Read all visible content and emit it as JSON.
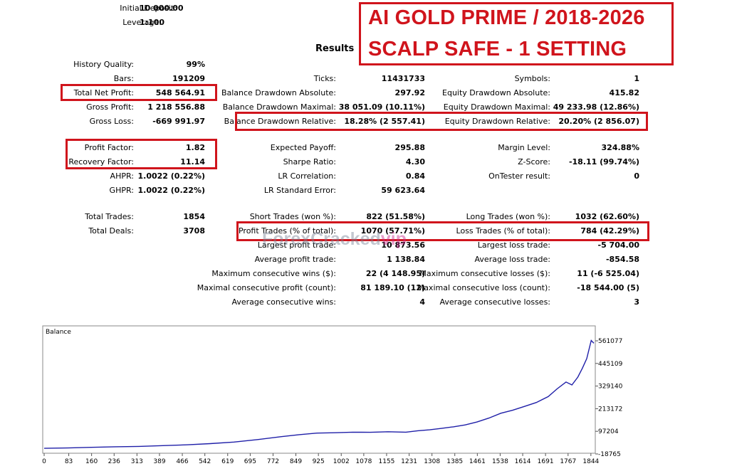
{
  "header": {
    "initial_deposit_label": "Initial Deposit:",
    "initial_deposit_value": "10 000.00",
    "leverage_label": "Leverage:",
    "leverage_value": "1:100",
    "results_heading": "Results"
  },
  "banner": {
    "line1": "AI GOLD PRIME / 2018-2026",
    "line2": "SCALP SAFE - 1 SETTING"
  },
  "watermark": {
    "text": "ForexCracked",
    "suffix": "vip"
  },
  "stats": {
    "col1": [
      {
        "label": "History Quality:",
        "value": "99%"
      },
      {
        "label": "Bars:",
        "value": "191209"
      },
      {
        "label": "Total Net Profit:",
        "value": "548 564.91"
      },
      {
        "label": "Gross Profit:",
        "value": "1 218 556.88"
      },
      {
        "label": "Gross Loss:",
        "value": "-669 991.97"
      },
      {
        "label": "Profit Factor:",
        "value": "1.82"
      },
      {
        "label": "Recovery Factor:",
        "value": "11.14"
      },
      {
        "label": "AHPR:",
        "value": "1.0022 (0.22%)"
      },
      {
        "label": "GHPR:",
        "value": "1.0022 (0.22%)"
      },
      {
        "label": "Total Trades:",
        "value": "1854"
      },
      {
        "label": "Total Deals:",
        "value": "3708"
      }
    ],
    "col2": [
      {
        "label": "Ticks:",
        "value": "11431733"
      },
      {
        "label": "Balance Drawdown Absolute:",
        "value": "297.92"
      },
      {
        "label": "Balance Drawdown Maximal:",
        "value": "38 051.09 (10.11%)"
      },
      {
        "label": "Balance Drawdown Relative:",
        "value": "18.28% (2 557.41)"
      },
      {
        "label": "Expected Payoff:",
        "value": "295.88"
      },
      {
        "label": "Sharpe Ratio:",
        "value": "4.30"
      },
      {
        "label": "LR Correlation:",
        "value": "0.84"
      },
      {
        "label": "LR Standard Error:",
        "value": "59 623.64"
      },
      {
        "label": "Short Trades (won %):",
        "value": "822 (51.58%)"
      },
      {
        "label": "Profit Trades (% of total):",
        "value": "1070 (57.71%)"
      },
      {
        "label": "Largest profit trade:",
        "value": "10 873.56"
      },
      {
        "label": "Average profit trade:",
        "value": "1 138.84"
      },
      {
        "label": "Maximum consecutive wins ($):",
        "value": "22 (4 148.95)"
      },
      {
        "label": "Maximal consecutive profit (count):",
        "value": "81 189.10 (12)"
      },
      {
        "label": "Average consecutive wins:",
        "value": "4"
      }
    ],
    "col3": [
      {
        "label": "Symbols:",
        "value": "1"
      },
      {
        "label": "Equity Drawdown Absolute:",
        "value": "415.82"
      },
      {
        "label": "Equity Drawdown Maximal:",
        "value": "49 233.98 (12.86%)"
      },
      {
        "label": "Equity Drawdown Relative:",
        "value": "20.20% (2 856.07)"
      },
      {
        "label": "Margin Level:",
        "value": "324.88%"
      },
      {
        "label": "Z-Score:",
        "value": "-18.11 (99.74%)"
      },
      {
        "label": "OnTester result:",
        "value": "0"
      },
      {
        "label": "Long Trades (won %):",
        "value": "1032 (62.60%)"
      },
      {
        "label": "Loss Trades (% of total):",
        "value": "784 (42.29%)"
      },
      {
        "label": "Largest loss trade:",
        "value": "-5 704.00"
      },
      {
        "label": "Average loss trade:",
        "value": "-854.58"
      },
      {
        "label": "Maximum consecutive losses ($):",
        "value": "11 (-6 525.04)"
      },
      {
        "label": "Maximal consecutive loss (count):",
        "value": "-18 544.00 (5)"
      },
      {
        "label": "Average consecutive losses:",
        "value": "3"
      }
    ]
  },
  "colors": {
    "highlight": "#d0141c",
    "series": "#1f1fa8"
  },
  "chart_data": {
    "type": "line",
    "title": "Balance",
    "xlabel": "",
    "ylabel": "",
    "x_ticks": [
      "0",
      "83",
      "160",
      "236",
      "313",
      "389",
      "466",
      "542",
      "619",
      "695",
      "772",
      "849",
      "925",
      "1002",
      "1078",
      "1155",
      "1231",
      "1308",
      "1385",
      "1461",
      "1538",
      "1614",
      "1691",
      "1767",
      "1844"
    ],
    "y_ticks": [
      "561077",
      "445109",
      "329140",
      "213172",
      "97204",
      "-18765"
    ],
    "ylim": [
      -18765,
      561077
    ],
    "xlim": [
      0,
      1854
    ],
    "series": [
      {
        "x": [
          0,
          80,
          160,
          240,
          320,
          400,
          480,
          560,
          640,
          720,
          800,
          860,
          920,
          980,
          1040,
          1100,
          1160,
          1220,
          1260,
          1300,
          1340,
          1380,
          1420,
          1460,
          1500,
          1540,
          1580,
          1620,
          1660,
          1700,
          1730,
          1760,
          1780,
          1800,
          1815,
          1830,
          1845,
          1854
        ],
        "values": [
          10000,
          12000,
          15000,
          18000,
          20000,
          24000,
          28000,
          34000,
          42000,
          55000,
          70000,
          80000,
          88000,
          90000,
          93000,
          92000,
          95000,
          93000,
          100000,
          105000,
          112000,
          120000,
          130000,
          145000,
          165000,
          190000,
          205000,
          225000,
          245000,
          275000,
          315000,
          350000,
          335000,
          375000,
          420000,
          470000,
          563000,
          548565
        ]
      }
    ],
    "grid": false,
    "legend": "none"
  }
}
